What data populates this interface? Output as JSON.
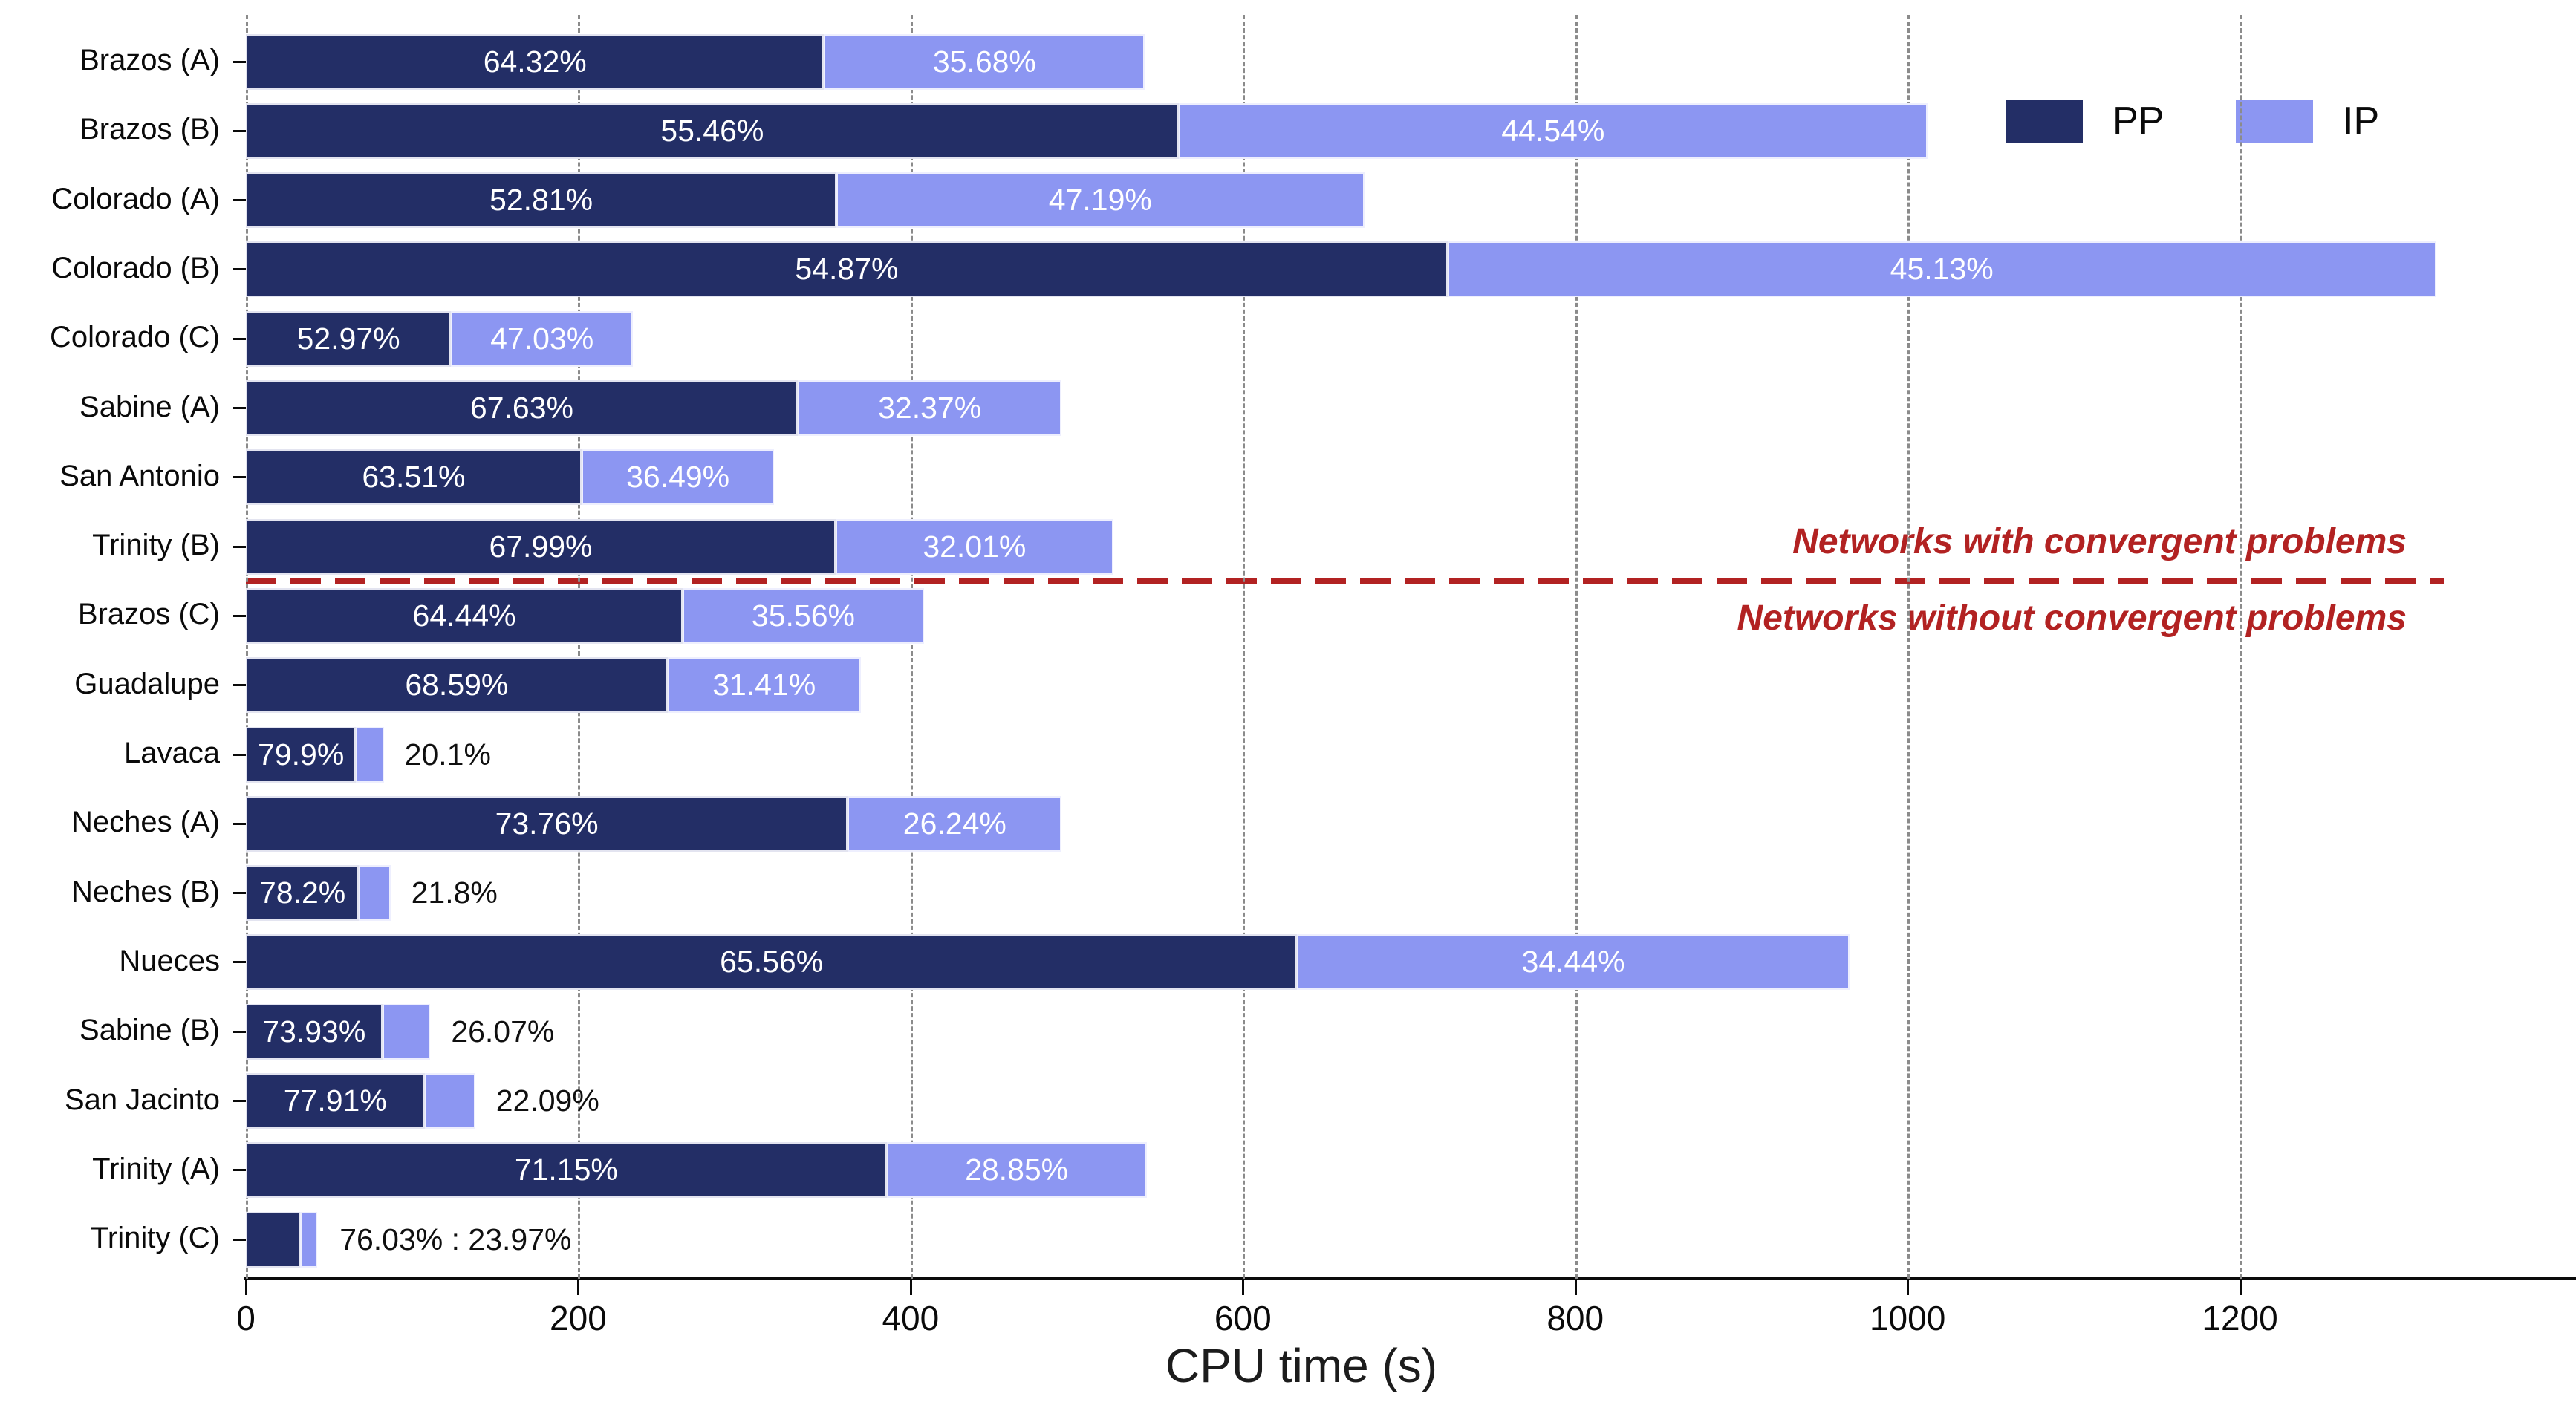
{
  "chart_data": {
    "type": "bar",
    "orientation": "horizontal",
    "stacked": true,
    "title": "",
    "xlabel": "CPU time (s)",
    "ylabel": "",
    "xlim": [
      0,
      1400
    ],
    "xticks": [
      0,
      200,
      400,
      600,
      800,
      1000,
      1200
    ],
    "grid": "vertical-dashed-gray",
    "colors": {
      "pp": "#232e66",
      "ip": "#8c96f2",
      "annotation_red": "#b22222",
      "axis": "#0a0a0a",
      "inside_label": "#ffffff",
      "outside_label": "#0f0f0f"
    },
    "legend": {
      "position": "top-right",
      "entries": [
        {
          "label": "PP",
          "color": "#232e66"
        },
        {
          "label": "IP",
          "color": "#8c96f2"
        }
      ]
    },
    "separator": {
      "after_row_index": 7,
      "style": "red-dashed-line",
      "label_above": "Networks with convergent problems",
      "label_below": "Networks without convergent problems"
    },
    "rows": [
      {
        "name": "Brazos (A)",
        "total_s": 541,
        "pp_pct": 64.32,
        "ip_pct": 35.68,
        "pp_label": "64.32%",
        "ip_label": "35.68%",
        "ip_label_pos": "inside"
      },
      {
        "name": "Brazos (B)",
        "total_s": 1012,
        "pp_pct": 55.46,
        "ip_pct": 44.54,
        "pp_label": "55.46%",
        "ip_label": "44.54%",
        "ip_label_pos": "inside"
      },
      {
        "name": "Colorado (A)",
        "total_s": 673,
        "pp_pct": 52.81,
        "ip_pct": 47.19,
        "pp_label": "52.81%",
        "ip_label": "47.19%",
        "ip_label_pos": "inside"
      },
      {
        "name": "Colorado (B)",
        "total_s": 1318,
        "pp_pct": 54.87,
        "ip_pct": 45.13,
        "pp_label": "54.87%",
        "ip_label": "45.13%",
        "ip_label_pos": "inside"
      },
      {
        "name": "Colorado (C)",
        "total_s": 233,
        "pp_pct": 52.97,
        "ip_pct": 47.03,
        "pp_label": "52.97%",
        "ip_label": "47.03%",
        "ip_label_pos": "inside"
      },
      {
        "name": "Sabine (A)",
        "total_s": 491,
        "pp_pct": 67.63,
        "ip_pct": 32.37,
        "pp_label": "67.63%",
        "ip_label": "32.37%",
        "ip_label_pos": "inside"
      },
      {
        "name": "San Antonio",
        "total_s": 318,
        "pp_pct": 63.51,
        "ip_pct": 36.49,
        "pp_label": "63.51%",
        "ip_label": "36.49%",
        "ip_label_pos": "inside"
      },
      {
        "name": "Trinity (B)",
        "total_s": 522,
        "pp_pct": 67.99,
        "ip_pct": 32.01,
        "pp_label": "67.99%",
        "ip_label": "32.01%",
        "ip_label_pos": "inside"
      },
      {
        "name": "Brazos (C)",
        "total_s": 408,
        "pp_pct": 64.44,
        "ip_pct": 35.56,
        "pp_label": "64.44%",
        "ip_label": "35.56%",
        "ip_label_pos": "inside"
      },
      {
        "name": "Guadalupe",
        "total_s": 370,
        "pp_pct": 68.59,
        "ip_pct": 31.41,
        "pp_label": "68.59%",
        "ip_label": "31.41%",
        "ip_label_pos": "inside"
      },
      {
        "name": "Lavaca",
        "total_s": 83,
        "pp_pct": 79.9,
        "ip_pct": 20.1,
        "pp_label": "79.9%",
        "ip_label": "20.1%",
        "ip_label_pos": "outside"
      },
      {
        "name": "Neches (A)",
        "total_s": 491,
        "pp_pct": 73.76,
        "ip_pct": 26.24,
        "pp_label": "73.76%",
        "ip_label": "26.24%",
        "ip_label_pos": "inside"
      },
      {
        "name": "Neches (B)",
        "total_s": 87,
        "pp_pct": 78.2,
        "ip_pct": 21.8,
        "pp_label": "78.2%",
        "ip_label": "21.8%",
        "ip_label_pos": "outside"
      },
      {
        "name": "Nueces",
        "total_s": 965,
        "pp_pct": 65.56,
        "ip_pct": 34.44,
        "pp_label": "65.56%",
        "ip_label": "34.44%",
        "ip_label_pos": "inside"
      },
      {
        "name": "Sabine (B)",
        "total_s": 111,
        "pp_pct": 73.93,
        "ip_pct": 26.07,
        "pp_label": "73.93%",
        "ip_label": "26.07%",
        "ip_label_pos": "outside"
      },
      {
        "name": "San Jacinto",
        "total_s": 138,
        "pp_pct": 77.91,
        "ip_pct": 22.09,
        "pp_label": "77.91%",
        "ip_label": "22.09%",
        "ip_label_pos": "outside"
      },
      {
        "name": "Trinity (A)",
        "total_s": 542,
        "pp_pct": 71.15,
        "ip_pct": 28.85,
        "pp_label": "71.15%",
        "ip_label": "28.85%",
        "ip_label_pos": "inside"
      },
      {
        "name": "Trinity (C)",
        "total_s": 43,
        "pp_pct": 76.03,
        "ip_pct": 23.97,
        "combined_label": "76.03% : 23.97%",
        "ip_label_pos": "combined"
      }
    ]
  }
}
